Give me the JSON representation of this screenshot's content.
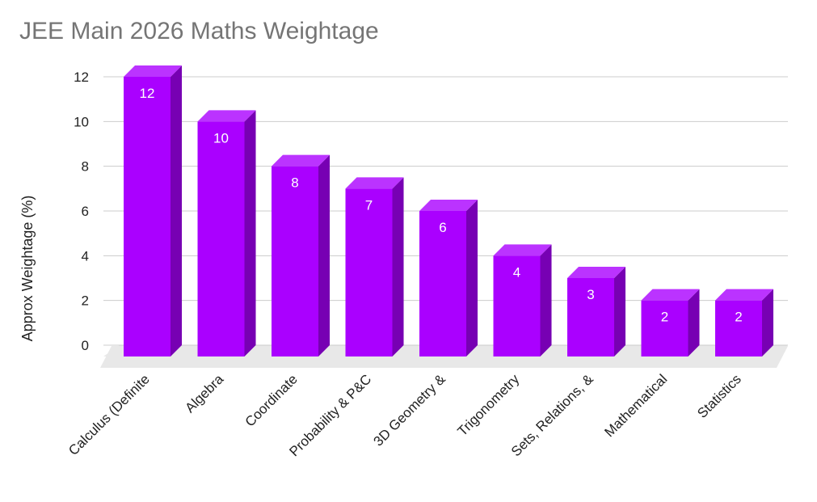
{
  "chart_data": {
    "type": "bar",
    "title": "JEE Main 2026 Maths Weightage",
    "xlabel": "",
    "ylabel": "Approx Weightage (%)",
    "categories": [
      "Calculus (Definite",
      "Algebra",
      "Coordinate",
      "Probability & P&C",
      "3D Geometry &",
      "Trigonometry",
      "Sets, Relations, &",
      "Mathematical",
      "Statistics"
    ],
    "values": [
      12,
      10,
      8,
      7,
      6,
      4,
      3,
      2,
      2
    ],
    "data_labels": [
      "12",
      "10",
      "8",
      "7",
      "6",
      "4",
      "3",
      "2",
      "2"
    ],
    "y_ticks": [
      "0",
      "2",
      "4",
      "6",
      "8",
      "10",
      "12"
    ],
    "ylim": [
      0,
      12
    ],
    "grid": true,
    "legend": "none",
    "style": "3d-bar"
  },
  "colors": {
    "bar_front": "#aa00ff",
    "bar_top": "#bb33ff",
    "bar_side": "#7700b3",
    "floor": "#e8e8e8",
    "grid": "#cccccc",
    "title": "#757575"
  }
}
